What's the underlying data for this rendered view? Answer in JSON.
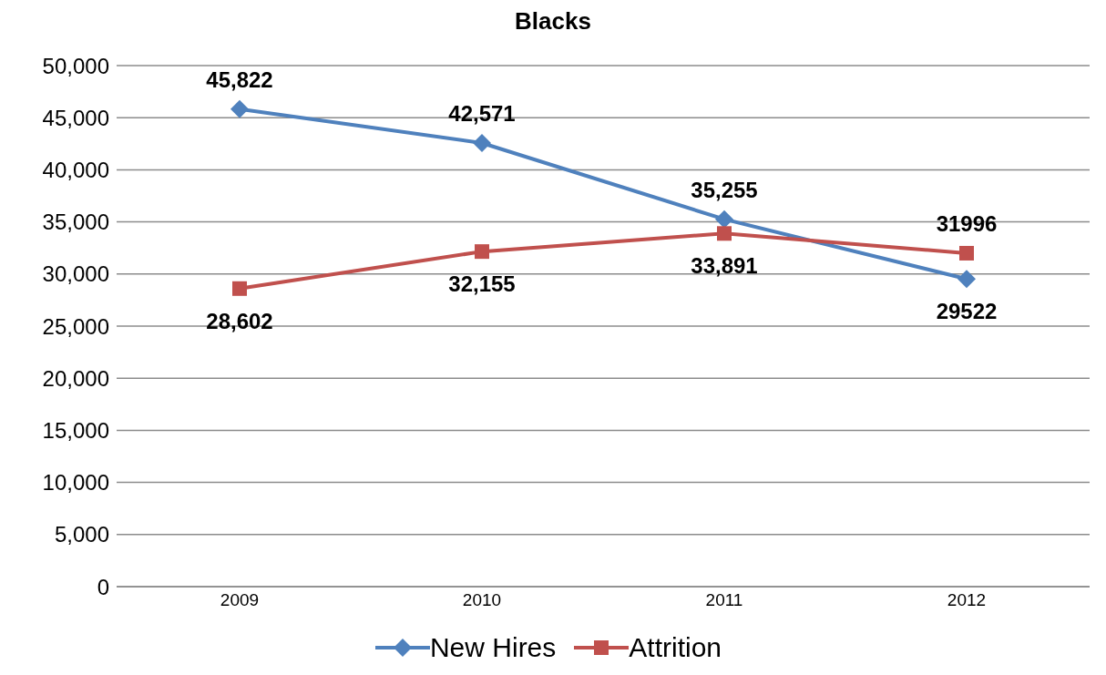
{
  "chart_data": {
    "type": "line",
    "title": "Blacks",
    "categories": [
      "2009",
      "2010",
      "2011",
      "2012"
    ],
    "series": [
      {
        "name": "New Hires",
        "color": "#4f81bd",
        "marker": "diamond",
        "values": [
          45822,
          42571,
          35255,
          29522
        ],
        "value_labels": [
          "45,822",
          "42,571",
          "35,255",
          "29522"
        ]
      },
      {
        "name": "Attrition",
        "color": "#c0504d",
        "marker": "square",
        "values": [
          28602,
          32155,
          33891,
          31996
        ],
        "value_labels": [
          "28,602",
          "32,155",
          "33,891",
          "31996"
        ]
      }
    ],
    "ylim": [
      0,
      50000
    ],
    "yticks": [
      {
        "value": 0,
        "label": "0"
      },
      {
        "value": 5000,
        "label": "5,000"
      },
      {
        "value": 10000,
        "label": "10,000"
      },
      {
        "value": 15000,
        "label": "15,000"
      },
      {
        "value": 20000,
        "label": "20,000"
      },
      {
        "value": 25000,
        "label": "25,000"
      },
      {
        "value": 30000,
        "label": "30,000"
      },
      {
        "value": 35000,
        "label": "35,000"
      },
      {
        "value": 40000,
        "label": "40,000"
      },
      {
        "value": 45000,
        "label": "45,000"
      },
      {
        "value": 50000,
        "label": "50,000"
      }
    ],
    "grid": "y",
    "legend": "bottom",
    "line_style": "solid"
  }
}
